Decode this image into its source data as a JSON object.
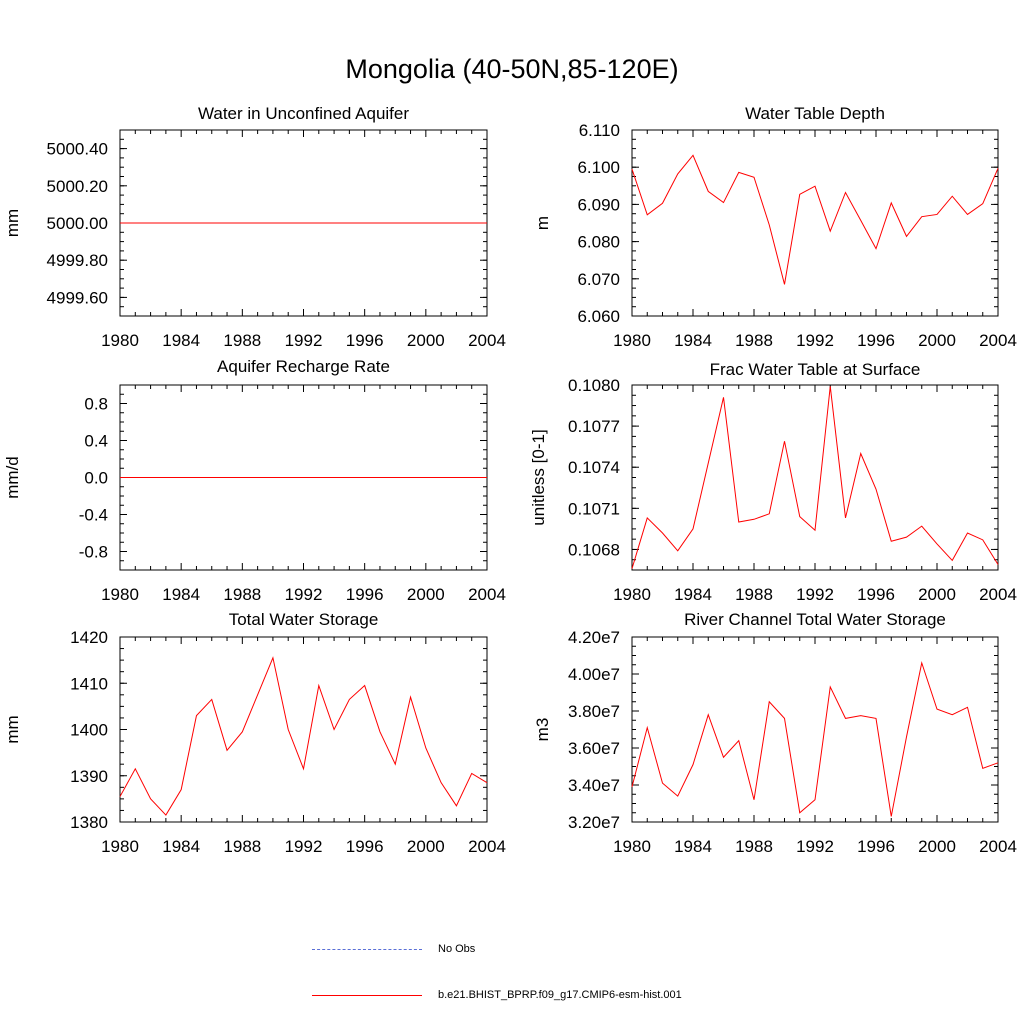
{
  "title": "Mongolia (40-50N,85-120E)",
  "colors": {
    "model": "#ff0000",
    "obs": "#5a6fd6",
    "axis": "#000000"
  },
  "legend": {
    "obs_label": "No Obs",
    "model_label": "b.e21.BHIST_BPRP.f09_g17.CMIP6-esm-hist.001"
  },
  "chart_data": [
    {
      "type": "line",
      "title": "Water in Unconfined Aquifer",
      "ylabel": "mm",
      "xlim": [
        1980,
        2004
      ],
      "ylim": [
        4999.5,
        5000.5
      ],
      "x_ticks": [
        "1980",
        "1984",
        "1988",
        "1992",
        "1996",
        "2000",
        "2004"
      ],
      "y_ticks": [
        "4999.60",
        "4999.80",
        "5000.00",
        "5000.20",
        "5000.40"
      ],
      "x": [
        1980,
        1981,
        1982,
        1983,
        1984,
        1985,
        1986,
        1987,
        1988,
        1989,
        1990,
        1991,
        1992,
        1993,
        1994,
        1995,
        1996,
        1997,
        1998,
        1999,
        2000,
        2001,
        2002,
        2003,
        2004
      ],
      "series": [
        {
          "values": [
            5000,
            5000,
            5000,
            5000,
            5000,
            5000,
            5000,
            5000,
            5000,
            5000,
            5000,
            5000,
            5000,
            5000,
            5000,
            5000,
            5000,
            5000,
            5000,
            5000,
            5000,
            5000,
            5000,
            5000,
            5000
          ]
        }
      ]
    },
    {
      "type": "line",
      "title": "Water Table Depth",
      "ylabel": "m",
      "xlim": [
        1980,
        2004
      ],
      "ylim": [
        6.06,
        6.11
      ],
      "x_ticks": [
        "1980",
        "1984",
        "1988",
        "1992",
        "1996",
        "2000",
        "2004"
      ],
      "y_ticks": [
        "6.060",
        "6.070",
        "6.080",
        "6.090",
        "6.100",
        "6.110"
      ],
      "x": [
        1980,
        1981,
        1982,
        1983,
        1984,
        1985,
        1986,
        1987,
        1988,
        1989,
        1990,
        1991,
        1992,
        1993,
        1994,
        1995,
        1996,
        1997,
        1998,
        1999,
        2000,
        2001,
        2002,
        2003,
        2004
      ],
      "series": [
        {
          "values": [
            6.0995,
            6.0872,
            6.0903,
            6.0982,
            6.1032,
            6.0935,
            6.0905,
            6.0986,
            6.0973,
            6.0845,
            6.0685,
            6.0927,
            6.0949,
            6.0828,
            6.0932,
            6.0857,
            6.0781,
            6.0904,
            6.0814,
            6.0867,
            6.0873,
            6.0922,
            6.0873,
            6.0902,
            6.0997
          ]
        }
      ]
    },
    {
      "type": "line",
      "title": "Aquifer Recharge Rate",
      "ylabel": "mm/d",
      "xlim": [
        1980,
        2004
      ],
      "ylim": [
        -1.0,
        1.0
      ],
      "x_ticks": [
        "1980",
        "1984",
        "1988",
        "1992",
        "1996",
        "2000",
        "2004"
      ],
      "y_ticks": [
        "-0.8",
        "-0.4",
        "0.0",
        "0.4",
        "0.8"
      ],
      "x": [
        1980,
        1981,
        1982,
        1983,
        1984,
        1985,
        1986,
        1987,
        1988,
        1989,
        1990,
        1991,
        1992,
        1993,
        1994,
        1995,
        1996,
        1997,
        1998,
        1999,
        2000,
        2001,
        2002,
        2003,
        2004
      ],
      "series": [
        {
          "values": [
            0,
            0,
            0,
            0,
            0,
            0,
            0,
            0,
            0,
            0,
            0,
            0,
            0,
            0,
            0,
            0,
            0,
            0,
            0,
            0,
            0,
            0,
            0,
            0,
            0
          ]
        }
      ]
    },
    {
      "type": "line",
      "title": "Frac Water Table at Surface",
      "ylabel": "unitless [0-1]",
      "xlim": [
        1980,
        2004
      ],
      "ylim": [
        0.10665,
        0.108
      ],
      "x_ticks": [
        "1980",
        "1984",
        "1988",
        "1992",
        "1996",
        "2000",
        "2004"
      ],
      "y_ticks": [
        "0.1068",
        "0.1071",
        "0.1074",
        "0.1077",
        "0.1080"
      ],
      "x": [
        1980,
        1981,
        1982,
        1983,
        1984,
        1985,
        1986,
        1987,
        1988,
        1989,
        1990,
        1991,
        1992,
        1993,
        1994,
        1995,
        1996,
        1997,
        1998,
        1999,
        2000,
        2001,
        2002,
        2003,
        2004
      ],
      "series": [
        {
          "values": [
            0.10666,
            0.10703,
            0.10692,
            0.10679,
            0.10695,
            0.10743,
            0.10791,
            0.107,
            0.10702,
            0.10706,
            0.10759,
            0.10704,
            0.10694,
            0.10799,
            0.10703,
            0.1075,
            0.10724,
            0.10686,
            0.10689,
            0.10697,
            0.10684,
            0.10672,
            0.10692,
            0.10687,
            0.10669
          ]
        }
      ]
    },
    {
      "type": "line",
      "title": "Total Water Storage",
      "ylabel": "mm",
      "xlim": [
        1980,
        2004
      ],
      "ylim": [
        1380,
        1420
      ],
      "x_ticks": [
        "1980",
        "1984",
        "1988",
        "1992",
        "1996",
        "2000",
        "2004"
      ],
      "y_ticks": [
        "1380",
        "1390",
        "1400",
        "1410",
        "1420"
      ],
      "x": [
        1980,
        1981,
        1982,
        1983,
        1984,
        1985,
        1986,
        1987,
        1988,
        1989,
        1990,
        1991,
        1992,
        1993,
        1994,
        1995,
        1996,
        1997,
        1998,
        1999,
        2000,
        2001,
        2002,
        2003,
        2004
      ],
      "series": [
        {
          "values": [
            1385.5,
            1391.5,
            1385.0,
            1381.5,
            1387.0,
            1403.0,
            1406.5,
            1395.5,
            1399.5,
            1407.5,
            1415.5,
            1400.0,
            1391.5,
            1409.5,
            1400.0,
            1406.5,
            1409.5,
            1399.5,
            1392.5,
            1407.0,
            1396.0,
            1388.5,
            1383.5,
            1390.5,
            1388.5
          ]
        }
      ]
    },
    {
      "type": "line",
      "title": "River Channel Total Water Storage",
      "ylabel": "m3",
      "xlim": [
        1980,
        2004
      ],
      "ylim": [
        32000000,
        42000000
      ],
      "x_ticks": [
        "1980",
        "1984",
        "1988",
        "1992",
        "1996",
        "2000",
        "2004"
      ],
      "y_ticks": [
        "3.20e7",
        "3.40e7",
        "3.60e7",
        "3.80e7",
        "4.00e7",
        "4.20e7"
      ],
      "x": [
        1980,
        1981,
        1982,
        1983,
        1984,
        1985,
        1986,
        1987,
        1988,
        1989,
        1990,
        1991,
        1992,
        1993,
        1994,
        1995,
        1996,
        1997,
        1998,
        1999,
        2000,
        2001,
        2002,
        2003,
        2004
      ],
      "series": [
        {
          "values": [
            33900000,
            37100000,
            34100000,
            33400000,
            35100000,
            37800000,
            35500000,
            36400000,
            33200000,
            38500000,
            37600000,
            32500000,
            33200000,
            39300000,
            37600000,
            37750000,
            37600000,
            32300000,
            36600000,
            40600000,
            38100000,
            37800000,
            38200000,
            34900000,
            35200000
          ]
        }
      ]
    }
  ]
}
